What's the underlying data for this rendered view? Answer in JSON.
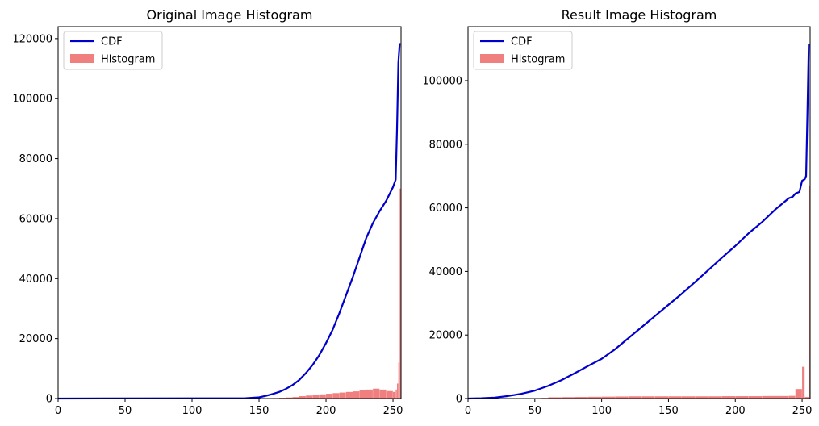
{
  "chart_data": [
    {
      "type": "bar",
      "title": "Original Image Histogram",
      "xlabel": "",
      "ylabel": "",
      "xlim": [
        0,
        256
      ],
      "ylim": [
        0,
        124000
      ],
      "xticks": [
        0,
        50,
        100,
        150,
        200,
        250
      ],
      "yticks": [
        0,
        20000,
        40000,
        60000,
        80000,
        100000,
        120000
      ],
      "legend": {
        "position": "top-left",
        "entries": [
          "CDF",
          "Histogram"
        ]
      },
      "colors": {
        "cdf": "#0000cc",
        "histogram": "#f08080"
      },
      "series": [
        {
          "name": "CDF",
          "type": "line",
          "x": [
            0,
            140,
            150,
            155,
            160,
            165,
            170,
            175,
            180,
            185,
            190,
            195,
            200,
            205,
            210,
            215,
            220,
            225,
            230,
            235,
            240,
            245,
            250,
            252,
            253,
            254,
            255
          ],
          "y": [
            0,
            100,
            400,
            900,
            1500,
            2200,
            3200,
            4500,
            6200,
            8500,
            11200,
            14500,
            18500,
            23000,
            28500,
            34500,
            40500,
            47000,
            53500,
            58500,
            62500,
            66000,
            70500,
            73000,
            90000,
            112000,
            118500
          ]
        },
        {
          "name": "Histogram",
          "type": "bar",
          "x": [
            160,
            165,
            170,
            175,
            180,
            185,
            190,
            195,
            200,
            205,
            210,
            215,
            220,
            225,
            230,
            235,
            240,
            245,
            250,
            252,
            253,
            254,
            255
          ],
          "y": [
            150,
            250,
            350,
            500,
            800,
            1000,
            1200,
            1400,
            1600,
            1800,
            2000,
            2200,
            2400,
            2700,
            3000,
            3300,
            3000,
            2500,
            2200,
            3000,
            5000,
            12000,
            70000
          ]
        }
      ]
    },
    {
      "type": "bar",
      "title": "Result Image Histogram",
      "xlabel": "",
      "ylabel": "",
      "xlim": [
        0,
        256
      ],
      "ylim": [
        0,
        117000
      ],
      "xticks": [
        0,
        50,
        100,
        150,
        200,
        250
      ],
      "yticks": [
        0,
        20000,
        40000,
        60000,
        80000,
        100000
      ],
      "legend": {
        "position": "top-left",
        "entries": [
          "CDF",
          "Histogram"
        ]
      },
      "colors": {
        "cdf": "#0000cc",
        "histogram": "#f08080"
      },
      "series": [
        {
          "name": "CDF",
          "type": "line",
          "x": [
            0,
            10,
            20,
            30,
            40,
            50,
            60,
            70,
            80,
            90,
            100,
            110,
            120,
            130,
            140,
            150,
            160,
            170,
            180,
            190,
            200,
            210,
            220,
            230,
            240,
            243,
            245,
            248,
            250,
            252,
            253,
            254,
            255
          ],
          "y": [
            0,
            100,
            300,
            800,
            1500,
            2500,
            4000,
            5800,
            8000,
            10300,
            12500,
            15500,
            19000,
            22500,
            26000,
            29500,
            33000,
            36700,
            40500,
            44300,
            48000,
            52000,
            55500,
            59500,
            63000,
            63500,
            64500,
            65000,
            68500,
            69000,
            70000,
            90000,
            111500
          ]
        },
        {
          "name": "Histogram",
          "type": "bar",
          "x": [
            55,
            60,
            70,
            80,
            90,
            100,
            110,
            120,
            130,
            140,
            150,
            160,
            170,
            180,
            190,
            200,
            210,
            220,
            230,
            240,
            245,
            250,
            252,
            255
          ],
          "y": [
            200,
            400,
            450,
            500,
            550,
            600,
            650,
            700,
            700,
            700,
            700,
            700,
            700,
            700,
            750,
            750,
            750,
            800,
            800,
            850,
            3000,
            10000,
            500,
            67000
          ]
        }
      ]
    }
  ]
}
